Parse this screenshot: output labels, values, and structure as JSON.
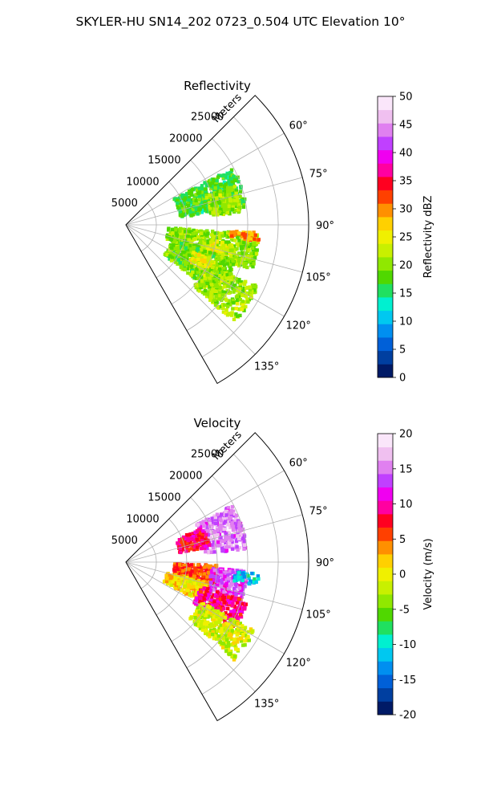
{
  "title": "SKYLER-HU  SN14_202  0723_0.504 UTC Elevation 10°",
  "chart_data": [
    {
      "type": "heatmap",
      "projection": "polar-sector",
      "title": "Reflectivity",
      "range_axis_label": "Meters",
      "range_ticks": [
        5000,
        10000,
        15000,
        20000,
        25000
      ],
      "range_max": 30000,
      "azimuth_range_deg": [
        45,
        150
      ],
      "azimuth_ticks": [
        60,
        75,
        90,
        105,
        120,
        135
      ],
      "azimuth_tick_labels": [
        "60°",
        "75°",
        "90°",
        "105°",
        "120°",
        "135°"
      ],
      "colorbar": {
        "label": "Reflectivity dBZ",
        "range": [
          0,
          50
        ],
        "ticks": [
          0,
          5,
          10,
          15,
          20,
          25,
          30,
          35,
          40,
          45,
          50
        ],
        "colors": [
          "#001a66",
          "#003fa0",
          "#0060d8",
          "#008ff0",
          "#00c8f0",
          "#00f0d0",
          "#20e060",
          "#50d800",
          "#90e800",
          "#c8f000",
          "#f0f000",
          "#ffd000",
          "#ff9000",
          "#ff4000",
          "#ff0020",
          "#ff00a0",
          "#f000f0",
          "#c040ff",
          "#e080f0",
          "#f0c0f0",
          "#fae6fa"
        ]
      },
      "echo_regions": [
        {
          "az": [
            62,
            82
          ],
          "range": [
            9000,
            20000
          ],
          "value": 17
        },
        {
          "az": [
            70,
            84
          ],
          "range": [
            14000,
            19000
          ],
          "value": 21
        },
        {
          "az": [
            94,
            110
          ],
          "range": [
            7000,
            22000
          ],
          "value": 20
        },
        {
          "az": [
            100,
            108
          ],
          "range": [
            14000,
            18000
          ],
          "value": 24
        },
        {
          "az": [
            108,
            128
          ],
          "range": [
            8000,
            19000
          ],
          "value": 19
        },
        {
          "az": [
            112,
            120
          ],
          "range": [
            12000,
            16000
          ],
          "value": 25
        },
        {
          "az": [
            115,
            132
          ],
          "range": [
            15000,
            24000
          ],
          "value": 21
        },
        {
          "az": [
            93,
            97
          ],
          "range": [
            17000,
            22000
          ],
          "value": 30
        }
      ]
    },
    {
      "type": "heatmap",
      "projection": "polar-sector",
      "title": "Velocity",
      "range_axis_label": "Meters",
      "range_ticks": [
        5000,
        10000,
        15000,
        20000,
        25000
      ],
      "range_max": 30000,
      "azimuth_range_deg": [
        45,
        150
      ],
      "azimuth_ticks": [
        60,
        75,
        90,
        105,
        120,
        135
      ],
      "azimuth_tick_labels": [
        "60°",
        "75°",
        "90°",
        "105°",
        "120°",
        "135°"
      ],
      "colorbar": {
        "label": "Velocity (m/s)",
        "range": [
          -20,
          20
        ],
        "ticks": [
          -20,
          -15,
          -10,
          -5,
          0,
          5,
          10,
          15,
          20
        ],
        "colors": [
          "#001a66",
          "#003fa0",
          "#0060d8",
          "#008ff0",
          "#00c8f0",
          "#00f0d0",
          "#20e060",
          "#50d800",
          "#90e800",
          "#c8f000",
          "#f0f000",
          "#ffd000",
          "#ff9000",
          "#ff4000",
          "#ff0020",
          "#ff00a0",
          "#f000f0",
          "#c040ff",
          "#e080f0",
          "#f0c0f0",
          "#fae6fa"
        ]
      },
      "echo_regions": [
        {
          "az": [
            62,
            84
          ],
          "range": [
            13000,
            20000
          ],
          "value": 15
        },
        {
          "az": [
            66,
            80
          ],
          "range": [
            9000,
            14000
          ],
          "value": 8
        },
        {
          "az": [
            92,
            104
          ],
          "range": [
            8000,
            15000
          ],
          "value": 6
        },
        {
          "az": [
            94,
            108
          ],
          "range": [
            14000,
            20000
          ],
          "value": 13
        },
        {
          "az": [
            95,
            100
          ],
          "range": [
            18000,
            22000
          ],
          "value": -11
        },
        {
          "az": [
            104,
            118
          ],
          "range": [
            7000,
            14000
          ],
          "value": 1
        },
        {
          "az": [
            108,
            122
          ],
          "range": [
            13000,
            21000
          ],
          "value": 9
        },
        {
          "az": [
            118,
            132
          ],
          "range": [
            14000,
            24000
          ],
          "value": -1
        }
      ]
    }
  ]
}
